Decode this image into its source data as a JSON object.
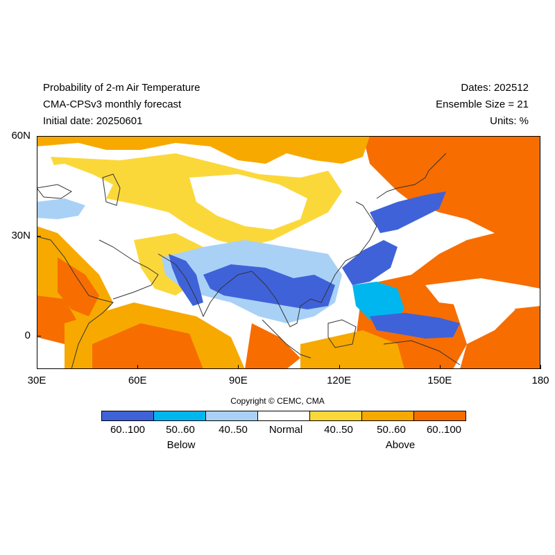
{
  "header": {
    "title_line1": "Probability of 2-m Air Temperature",
    "title_line2": "CMA-CPSv3 monthly forecast",
    "title_line3": "Initial date: 20250601",
    "dates": "Dates: 202512",
    "ensemble": "Ensemble Size = 21",
    "units": "Units: %"
  },
  "map": {
    "lon_range": [
      30,
      180
    ],
    "lat_range": [
      -10,
      60
    ],
    "lat_ticks": [
      {
        "value": 60,
        "label": "60N"
      },
      {
        "value": 30,
        "label": "30N"
      },
      {
        "value": 0,
        "label": "0"
      }
    ],
    "lon_ticks": [
      {
        "value": 30,
        "label": "30E"
      },
      {
        "value": 60,
        "label": "60E"
      },
      {
        "value": 90,
        "label": "90E"
      },
      {
        "value": 120,
        "label": "120E"
      },
      {
        "value": 150,
        "label": "150E"
      },
      {
        "value": 180,
        "label": "180"
      }
    ]
  },
  "copyright": "Copyright © CEMC, CMA",
  "legend": {
    "categories": [
      {
        "label": "60..100",
        "color": "#3f62d8"
      },
      {
        "label": "50..60",
        "color": "#00b6ee"
      },
      {
        "label": "40..50",
        "color": "#a9d1f6"
      },
      {
        "label": "Normal",
        "color": "#ffffff"
      },
      {
        "label": "40..50",
        "color": "#fbd83a"
      },
      {
        "label": "50..60",
        "color": "#f7a900"
      },
      {
        "label": "60..100",
        "color": "#f76d00"
      }
    ],
    "below_label": "Below",
    "above_label": "Above"
  }
}
